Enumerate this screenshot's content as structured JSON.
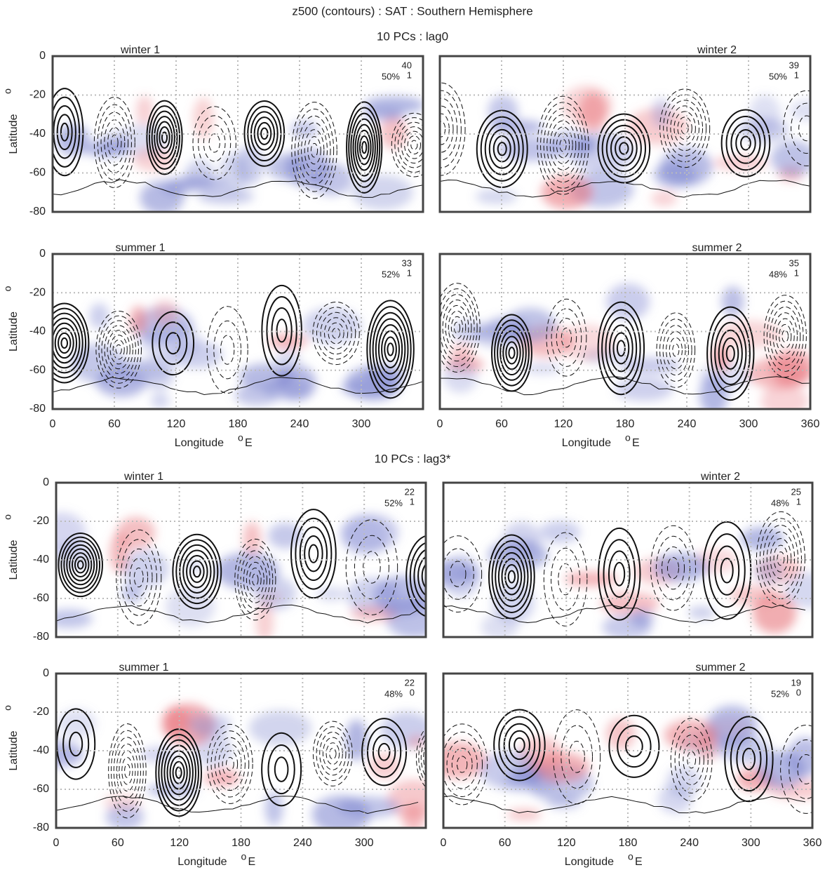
{
  "figure": {
    "title": "z500 (contours) : SAT : Southern Hemisphere",
    "section_titles": [
      "10 PCs : lag0",
      "10 PCs : lag3*"
    ]
  },
  "chart_data": [
    {
      "type": "contour-map",
      "title": "winter 1",
      "annotations": [
        "40",
        "1",
        "50%"
      ],
      "xlim": [
        0,
        360
      ],
      "ylim": [
        -80,
        0
      ],
      "xticks": [
        0,
        60,
        120,
        180,
        240,
        300
      ],
      "yticks": [
        0,
        -20,
        -40,
        -60,
        -80
      ],
      "xticklabels": false,
      "yticklabels": true,
      "ylabel": "Latitude",
      "ylabel_unit": "o",
      "grid": true
    },
    {
      "type": "contour-map",
      "title": "winter 2",
      "annotations": [
        "39",
        "1",
        "50%"
      ],
      "xlim": [
        0,
        360
      ],
      "ylim": [
        -80,
        0
      ],
      "xticks": [
        0,
        60,
        120,
        180,
        240,
        300,
        360
      ],
      "yticks": [
        0,
        -20,
        -40,
        -60,
        -80
      ],
      "xticklabels": false,
      "yticklabels": false,
      "grid": true
    },
    {
      "type": "contour-map",
      "title": "summer 1",
      "annotations": [
        "33",
        "1",
        "52%"
      ],
      "xlim": [
        0,
        360
      ],
      "ylim": [
        -80,
        0
      ],
      "xticks": [
        0,
        60,
        120,
        180,
        240,
        300
      ],
      "yticks": [
        0,
        -20,
        -40,
        -60,
        -80
      ],
      "xticklabels": true,
      "yticklabels": true,
      "ylabel": "Latitude",
      "ylabel_unit": "o",
      "xlabel": "Longitude",
      "xlabel_unit_sup": "o",
      "xlabel_unit": "E",
      "grid": true
    },
    {
      "type": "contour-map",
      "title": "summer 2",
      "annotations": [
        "35",
        "1",
        "48%"
      ],
      "xlim": [
        0,
        360
      ],
      "ylim": [
        -80,
        0
      ],
      "xticks": [
        0,
        60,
        120,
        180,
        240,
        300,
        360
      ],
      "yticks": [
        0,
        -20,
        -40,
        -60,
        -80
      ],
      "xticklabels": true,
      "yticklabels": false,
      "xlabel": "Longitude",
      "xlabel_unit_sup": "o",
      "xlabel_unit": "E",
      "grid": true
    },
    {
      "type": "contour-map",
      "title": "winter 1",
      "annotations": [
        "22",
        "1",
        "52%"
      ],
      "xlim": [
        0,
        360
      ],
      "ylim": [
        -80,
        0
      ],
      "xticks": [
        0,
        60,
        120,
        180,
        240,
        300
      ],
      "yticks": [
        0,
        -20,
        -40,
        -60,
        -80
      ],
      "xticklabels": false,
      "yticklabels": true,
      "ylabel": "Latitude",
      "ylabel_unit": "o",
      "grid": true
    },
    {
      "type": "contour-map",
      "title": "winter 2",
      "annotations": [
        "25",
        "1",
        "48%"
      ],
      "xlim": [
        0,
        360
      ],
      "ylim": [
        -80,
        0
      ],
      "xticks": [
        0,
        60,
        120,
        180,
        240,
        300,
        360
      ],
      "yticks": [
        0,
        -20,
        -40,
        -60,
        -80
      ],
      "xticklabels": false,
      "yticklabels": false,
      "grid": true
    },
    {
      "type": "contour-map",
      "title": "summer 1",
      "annotations": [
        "22",
        "0",
        "48%"
      ],
      "xlim": [
        0,
        360
      ],
      "ylim": [
        -80,
        0
      ],
      "xticks": [
        0,
        60,
        120,
        180,
        240,
        300
      ],
      "yticks": [
        0,
        -20,
        -40,
        -60,
        -80
      ],
      "xticklabels": true,
      "yticklabels": true,
      "ylabel": "Latitude",
      "ylabel_unit": "o",
      "xlabel": "Longitude",
      "xlabel_unit_sup": "o",
      "xlabel_unit": "E",
      "grid": true
    },
    {
      "type": "contour-map",
      "title": "summer 2",
      "annotations": [
        "19",
        "0",
        "52%"
      ],
      "xlim": [
        0,
        360
      ],
      "ylim": [
        -80,
        0
      ],
      "xticks": [
        0,
        60,
        120,
        180,
        240,
        300,
        360
      ],
      "yticks": [
        0,
        -20,
        -40,
        -60,
        -80
      ],
      "xticklabels": true,
      "yticklabels": false,
      "xlabel": "Longitude",
      "xlabel_unit_sup": "o",
      "xlabel_unit": "E",
      "grid": true
    }
  ]
}
